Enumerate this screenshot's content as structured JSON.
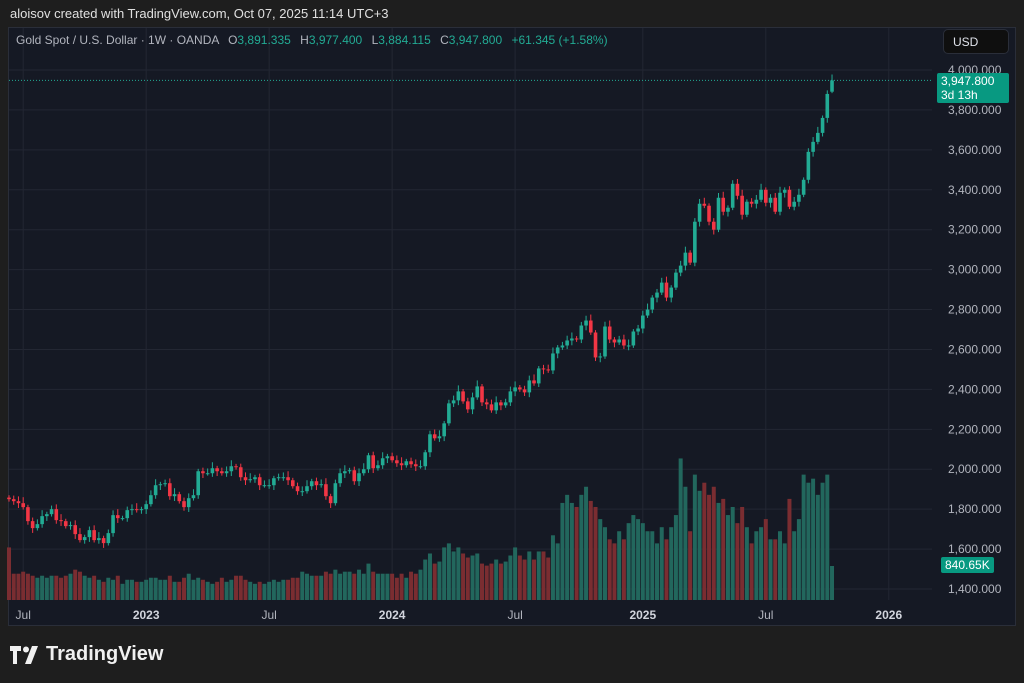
{
  "credit": "aloisov created with TradingView.com, Oct 07, 2025 11:14 UTC+3",
  "legend": {
    "symbol": "Gold Spot / U.S. Dollar · 1W · OANDA",
    "o_label": "O",
    "o": "3,891.335",
    "h_label": "H",
    "h": "3,977.400",
    "l_label": "L",
    "l": "3,884.115",
    "c_label": "C",
    "c": "3,947.800",
    "change": "+61.345 (+1.58%)"
  },
  "currency_button": "USD",
  "price_tag": {
    "price": "3,947.800",
    "countdown": "3d 13h"
  },
  "volume_tag": "840.65K",
  "brand": "TradingView",
  "colors": {
    "up": "#22ab94",
    "down": "#f23645",
    "vol_up": "#22675d",
    "vol_down": "#7a2d31",
    "grid": "#232733",
    "background": "#151924"
  },
  "chart_data": {
    "type": "candlestick",
    "title": "Gold Spot / U.S. Dollar · 1W · OANDA",
    "ylim": [
      1350,
      4050
    ],
    "y_ticks": [
      1400,
      1600,
      1800,
      2000,
      2200,
      2400,
      2600,
      2800,
      3000,
      3200,
      3400,
      3600,
      3800,
      4000
    ],
    "y_tick_labels": [
      "1,400.000",
      "1,600.000",
      "1,800.000",
      "2,000.000",
      "2,200.000",
      "2,400.000",
      "2,600.000",
      "2,800.000",
      "3,000.000",
      "3,200.000",
      "3,400.000",
      "3,600.000",
      "3,800.000",
      "4,000.000"
    ],
    "x_ticks": [
      {
        "label": "Jul",
        "week": 3,
        "bold": false
      },
      {
        "label": "2023",
        "week": 29,
        "bold": true
      },
      {
        "label": "Jul",
        "week": 55,
        "bold": false
      },
      {
        "label": "2024",
        "week": 81,
        "bold": true
      },
      {
        "label": "Jul",
        "week": 107,
        "bold": false
      },
      {
        "label": "2025",
        "week": 134,
        "bold": true
      },
      {
        "label": "Jul",
        "week": 160,
        "bold": false
      },
      {
        "label": "2026",
        "week": 186,
        "bold": true
      }
    ],
    "weekly_close": [
      1850,
      1840,
      1830,
      1810,
      1740,
      1705,
      1725,
      1765,
      1775,
      1800,
      1745,
      1740,
      1715,
      1720,
      1675,
      1645,
      1660,
      1695,
      1645,
      1655,
      1630,
      1680,
      1770,
      1755,
      1755,
      1795,
      1800,
      1795,
      1800,
      1825,
      1870,
      1920,
      1925,
      1930,
      1865,
      1875,
      1840,
      1810,
      1855,
      1870,
      1990,
      1980,
      1980,
      2005,
      1990,
      1980,
      1990,
      2015,
      2010,
      1960,
      1945,
      1950,
      1960,
      1920,
      1920,
      1920,
      1955,
      1960,
      1960,
      1945,
      1915,
      1890,
      1890,
      1915,
      1940,
      1920,
      1925,
      1865,
      1830,
      1930,
      1980,
      1990,
      1995,
      1940,
      1980,
      2000,
      2070,
      2005,
      2020,
      2055,
      2065,
      2045,
      2030,
      2020,
      2040,
      2025,
      2015,
      2015,
      2085,
      2175,
      2155,
      2165,
      2230,
      2330,
      2345,
      2390,
      2340,
      2300,
      2360,
      2415,
      2335,
      2325,
      2295,
      2335,
      2320,
      2335,
      2390,
      2410,
      2400,
      2385,
      2445,
      2430,
      2505,
      2500,
      2495,
      2580,
      2610,
      2620,
      2645,
      2655,
      2650,
      2720,
      2745,
      2685,
      2560,
      2565,
      2715,
      2650,
      2635,
      2650,
      2620,
      2620,
      2690,
      2705,
      2770,
      2800,
      2860,
      2885,
      2935,
      2860,
      2910,
      2985,
      3020,
      3085,
      3035,
      3240,
      3330,
      3320,
      3240,
      3200,
      3360,
      3290,
      3310,
      3430,
      3370,
      3275,
      3340,
      3330,
      3350,
      3400,
      3335,
      3360,
      3290,
      3385,
      3400,
      3315,
      3340,
      3375,
      3450,
      3590,
      3640,
      3685,
      3760,
      3880,
      3947.8
    ],
    "last_candle": {
      "open": 3891.335,
      "high": 3977.4,
      "low": 3884.115,
      "close": 3947.8
    },
    "weekly_volume_k": [
      1300,
      650,
      650,
      700,
      650,
      600,
      550,
      600,
      550,
      600,
      600,
      550,
      600,
      650,
      750,
      700,
      600,
      550,
      600,
      500,
      450,
      550,
      500,
      600,
      400,
      500,
      500,
      450,
      450,
      500,
      550,
      550,
      500,
      500,
      600,
      450,
      450,
      550,
      650,
      500,
      550,
      500,
      450,
      400,
      450,
      550,
      450,
      500,
      600,
      600,
      500,
      450,
      400,
      450,
      400,
      450,
      500,
      450,
      500,
      500,
      550,
      550,
      700,
      650,
      600,
      600,
      600,
      700,
      650,
      750,
      650,
      700,
      700,
      650,
      750,
      650,
      900,
      700,
      650,
      650,
      650,
      650,
      550,
      650,
      550,
      700,
      650,
      750,
      1000,
      1150,
      900,
      950,
      1300,
      1400,
      1200,
      1300,
      1150,
      1050,
      1100,
      1150,
      900,
      850,
      900,
      1000,
      900,
      950,
      1100,
      1300,
      1100,
      1000,
      1200,
      1000,
      1200,
      1200,
      1050,
      1600,
      1400,
      2400,
      2600,
      2400,
      2300,
      2600,
      2800,
      2450,
      2300,
      2000,
      1800,
      1500,
      1400,
      1700,
      1500,
      1900,
      2100,
      2000,
      1900,
      1700,
      1700,
      1400,
      1800,
      1500,
      1800,
      2100,
      3500,
      2800,
      1700,
      3100,
      2700,
      2900,
      2600,
      2800,
      2400,
      2500,
      2100,
      2300,
      1900,
      2300,
      1800,
      1400,
      1700,
      1800,
      2000,
      1500,
      1500,
      1700,
      1400,
      2500,
      1700,
      2000,
      3100,
      2900,
      3000,
      2600,
      2900,
      3100,
      840.65
    ]
  }
}
